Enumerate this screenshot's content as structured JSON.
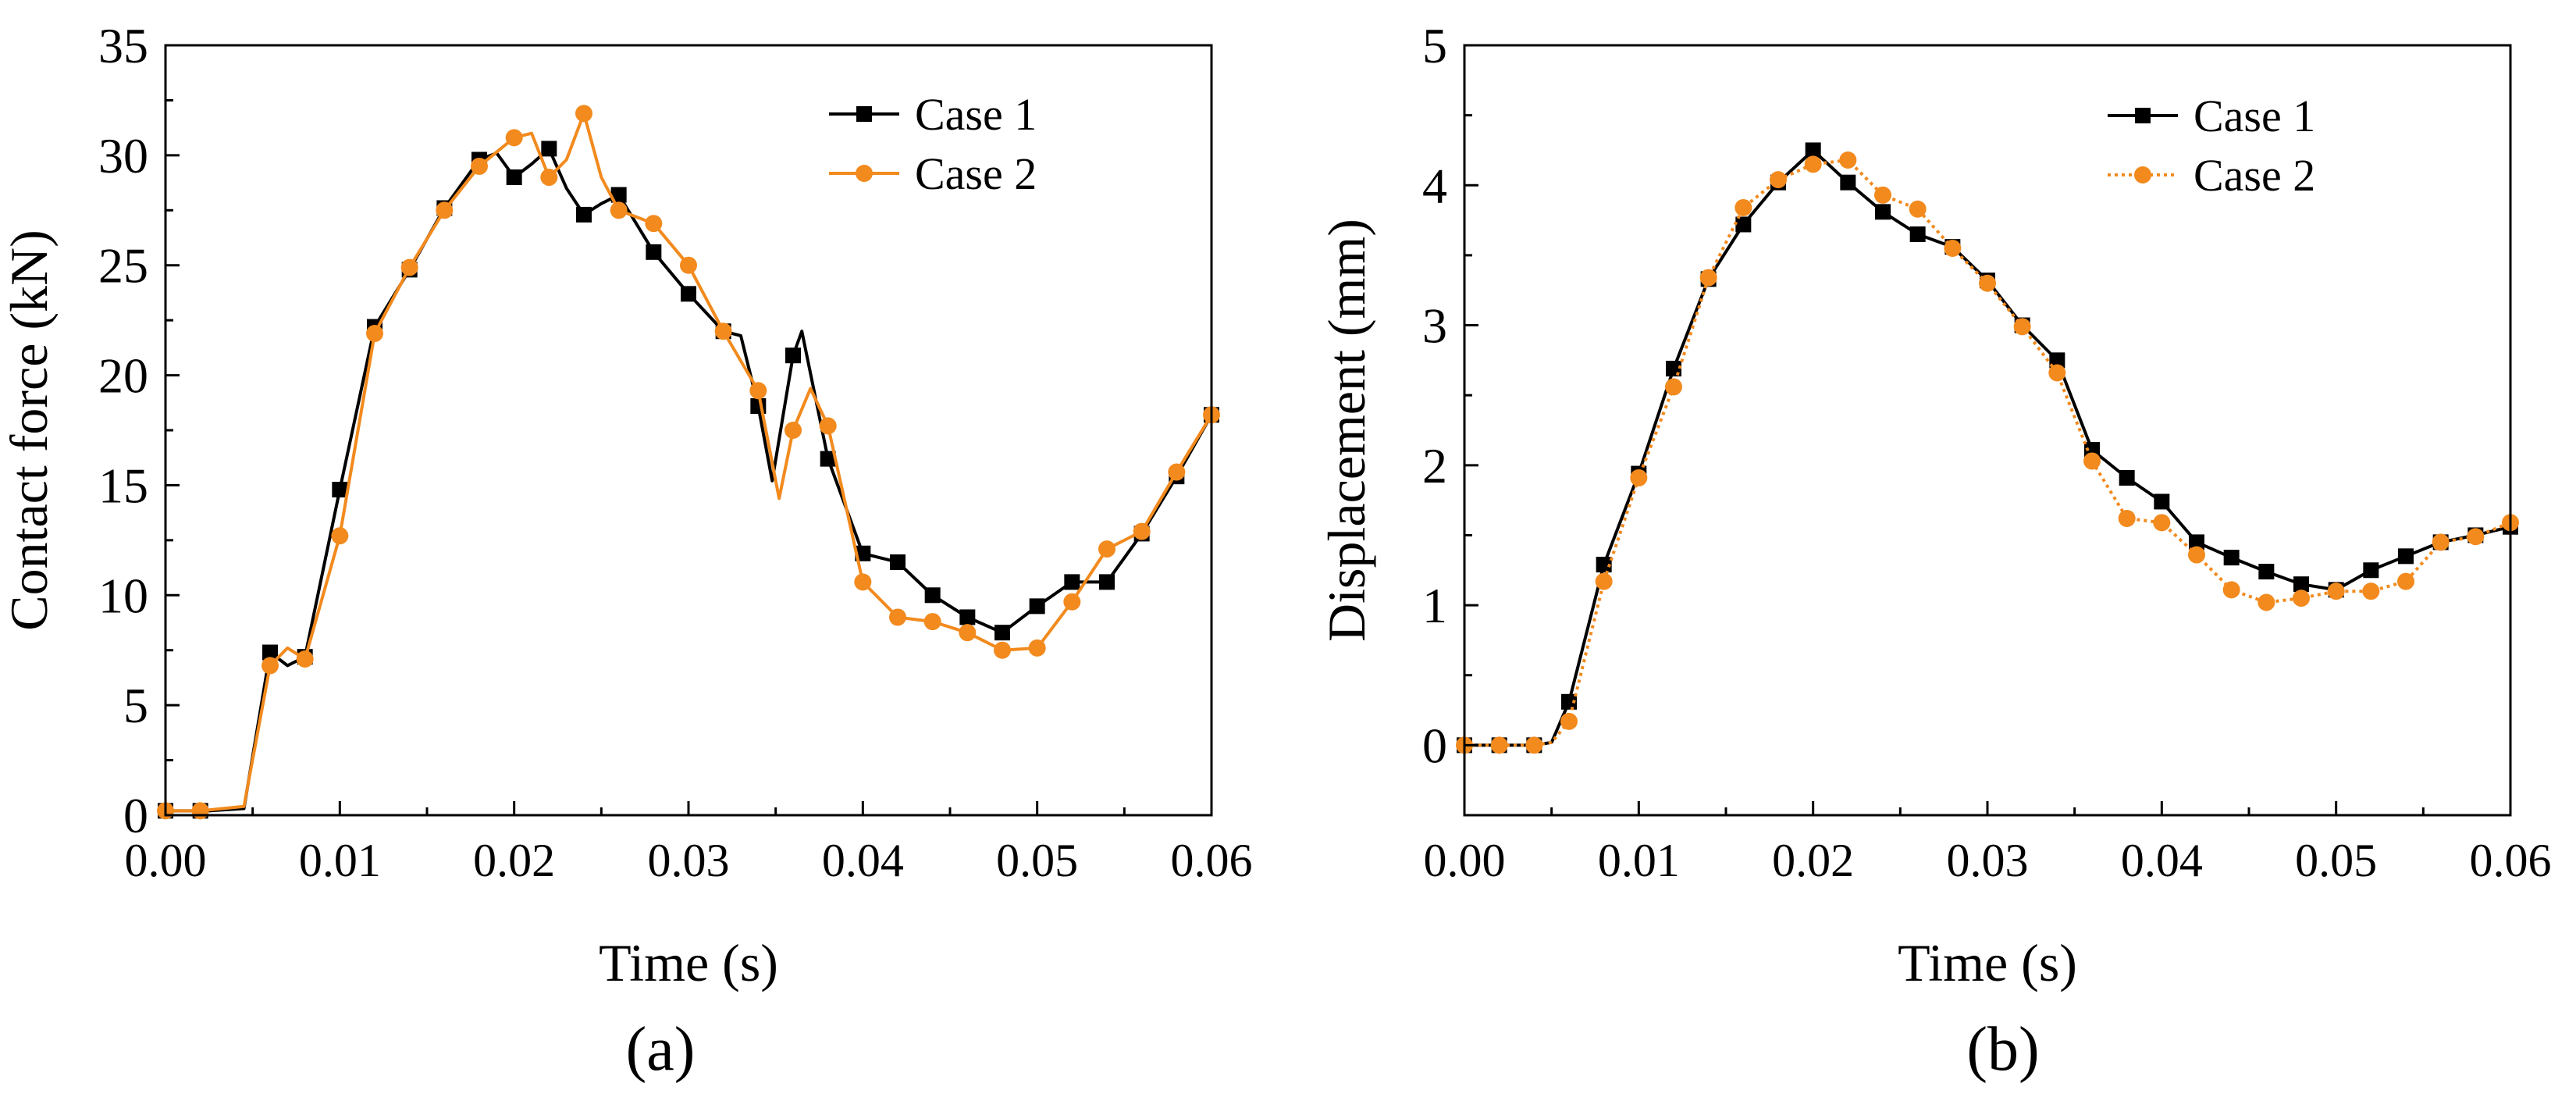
{
  "chart_data": [
    {
      "type": "line",
      "panel_label": "(a)",
      "xlabel": "Time (s)",
      "ylabel": "Contact force (kN)",
      "xlim": [
        0,
        0.06
      ],
      "ylim": [
        0,
        35
      ],
      "xticks": [
        0.0,
        0.01,
        0.02,
        0.03,
        0.04,
        0.05,
        0.06
      ],
      "xtick_labels": [
        "0.00",
        "0.01",
        "0.02",
        "0.03",
        "0.04",
        "0.05",
        "0.06"
      ],
      "yticks": [
        0,
        5,
        10,
        15,
        20,
        25,
        30,
        35
      ],
      "ytick_labels": [
        "0",
        "5",
        "10",
        "15",
        "20",
        "25",
        "30",
        "35"
      ],
      "grid": false,
      "legend_position": "top-right",
      "series": [
        {
          "name": "Case 1",
          "color": "#000000",
          "marker": "square",
          "line_style": "solid",
          "x": [
            0.0,
            0.0025,
            0.0045,
            0.006,
            0.007,
            0.008,
            0.01,
            0.012,
            0.014,
            0.016,
            0.018,
            0.019,
            0.02,
            0.021,
            0.022,
            0.023,
            0.024,
            0.025,
            0.026,
            0.028,
            0.03,
            0.032,
            0.033,
            0.034,
            0.0348,
            0.036,
            0.0365,
            0.038,
            0.04,
            0.042,
            0.044,
            0.046,
            0.048,
            0.05,
            0.052,
            0.054,
            0.056,
            0.058,
            0.06
          ],
          "y": [
            0.2,
            0.2,
            0.3,
            7.4,
            6.8,
            7.2,
            14.8,
            22.2,
            24.8,
            27.6,
            29.8,
            30.1,
            29.0,
            29.6,
            30.3,
            28.5,
            27.3,
            27.8,
            28.2,
            25.6,
            23.7,
            22.0,
            21.8,
            18.6,
            15.2,
            20.9,
            22.0,
            16.2,
            11.9,
            11.5,
            10.0,
            9.0,
            8.3,
            9.5,
            10.6,
            10.6,
            12.8,
            15.4,
            18.2
          ],
          "markers_x": [
            0.0,
            0.002,
            0.006,
            0.008,
            0.01,
            0.012,
            0.014,
            0.016,
            0.018,
            0.02,
            0.022,
            0.024,
            0.026,
            0.028,
            0.03,
            0.032,
            0.034,
            0.036,
            0.038,
            0.04,
            0.042,
            0.044,
            0.046,
            0.048,
            0.05,
            0.052,
            0.054,
            0.056,
            0.058,
            0.06
          ],
          "markers_y": [
            0.2,
            0.2,
            7.4,
            7.2,
            14.8,
            22.2,
            24.8,
            27.6,
            29.8,
            29.0,
            30.3,
            27.3,
            28.2,
            25.6,
            23.7,
            22.0,
            18.6,
            20.9,
            16.2,
            11.9,
            11.5,
            10.0,
            9.0,
            8.3,
            9.5,
            10.6,
            10.6,
            12.8,
            15.4,
            18.2
          ]
        },
        {
          "name": "Case 2",
          "color": "#F28A1E",
          "marker": "circle",
          "line_style": "solid",
          "x": [
            0.0,
            0.002,
            0.0045,
            0.006,
            0.007,
            0.008,
            0.01,
            0.012,
            0.014,
            0.016,
            0.018,
            0.02,
            0.021,
            0.022,
            0.023,
            0.024,
            0.025,
            0.026,
            0.028,
            0.03,
            0.032,
            0.034,
            0.0352,
            0.036,
            0.037,
            0.038,
            0.04,
            0.042,
            0.044,
            0.046,
            0.048,
            0.05,
            0.052,
            0.054,
            0.056,
            0.058,
            0.06
          ],
          "y": [
            0.2,
            0.2,
            0.4,
            6.8,
            7.6,
            7.1,
            12.7,
            21.9,
            24.9,
            27.5,
            29.5,
            30.8,
            31.0,
            29.0,
            29.8,
            31.9,
            29.0,
            27.5,
            26.9,
            25.0,
            22.0,
            19.3,
            14.4,
            17.5,
            19.4,
            17.7,
            10.6,
            9.0,
            8.8,
            8.3,
            7.5,
            7.6,
            9.7,
            12.1,
            12.9,
            15.6,
            18.2
          ],
          "markers_x": [
            0.0,
            0.002,
            0.006,
            0.008,
            0.01,
            0.012,
            0.014,
            0.016,
            0.018,
            0.02,
            0.022,
            0.024,
            0.026,
            0.028,
            0.03,
            0.032,
            0.034,
            0.036,
            0.038,
            0.04,
            0.042,
            0.044,
            0.046,
            0.048,
            0.05,
            0.052,
            0.054,
            0.056,
            0.058,
            0.06
          ],
          "markers_y": [
            0.2,
            0.2,
            6.8,
            7.1,
            12.7,
            21.9,
            24.9,
            27.5,
            29.5,
            30.8,
            29.0,
            31.9,
            27.5,
            26.9,
            25.0,
            22.0,
            19.3,
            17.5,
            17.7,
            10.6,
            9.0,
            8.8,
            8.3,
            7.5,
            7.6,
            9.7,
            12.1,
            12.9,
            15.6,
            18.2
          ]
        }
      ]
    },
    {
      "type": "line",
      "panel_label": "(b)",
      "xlabel": "Time (s)",
      "ylabel": "Displacement (mm)",
      "xlim": [
        0,
        0.06
      ],
      "ylim": [
        -0.5,
        5
      ],
      "xticks": [
        0.0,
        0.01,
        0.02,
        0.03,
        0.04,
        0.05,
        0.06
      ],
      "xtick_labels": [
        "0.00",
        "0.01",
        "0.02",
        "0.03",
        "0.04",
        "0.05",
        "0.06"
      ],
      "yticks": [
        0,
        1,
        2,
        3,
        4,
        5
      ],
      "ytick_labels": [
        "0",
        "1",
        "2",
        "3",
        "4",
        "5"
      ],
      "grid": false,
      "legend_position": "top-right",
      "series": [
        {
          "name": "Case 1",
          "color": "#000000",
          "marker": "square",
          "line_style": "solid",
          "x": [
            0.0,
            0.002,
            0.004,
            0.005,
            0.006,
            0.008,
            0.01,
            0.012,
            0.014,
            0.016,
            0.018,
            0.02,
            0.022,
            0.024,
            0.026,
            0.028,
            0.03,
            0.032,
            0.034,
            0.036,
            0.038,
            0.04,
            0.042,
            0.044,
            0.046,
            0.048,
            0.05,
            0.052,
            0.054,
            0.056,
            0.058,
            0.06
          ],
          "y": [
            0.0,
            0.0,
            0.0,
            0.02,
            0.31,
            1.29,
            1.94,
            2.69,
            3.33,
            3.72,
            4.02,
            4.25,
            4.02,
            3.81,
            3.65,
            3.56,
            3.32,
            3.0,
            2.75,
            2.11,
            1.91,
            1.74,
            1.45,
            1.34,
            1.24,
            1.15,
            1.11,
            1.25,
            1.35,
            1.45,
            1.5,
            1.56
          ],
          "markers_x": [
            0.0,
            0.002,
            0.004,
            0.006,
            0.008,
            0.01,
            0.012,
            0.014,
            0.016,
            0.018,
            0.02,
            0.022,
            0.024,
            0.026,
            0.028,
            0.03,
            0.032,
            0.034,
            0.036,
            0.038,
            0.04,
            0.042,
            0.044,
            0.046,
            0.048,
            0.05,
            0.052,
            0.054,
            0.056,
            0.058,
            0.06
          ],
          "markers_y": [
            0.0,
            0.0,
            0.0,
            0.31,
            1.29,
            1.94,
            2.69,
            3.33,
            3.72,
            4.02,
            4.25,
            4.02,
            3.81,
            3.65,
            3.56,
            3.32,
            3.0,
            2.75,
            2.11,
            1.91,
            1.74,
            1.45,
            1.34,
            1.24,
            1.15,
            1.11,
            1.25,
            1.35,
            1.45,
            1.5,
            1.56
          ]
        },
        {
          "name": "Case 2",
          "color": "#F28A1E",
          "marker": "circle",
          "line_style": "dotted",
          "x": [
            0.0,
            0.002,
            0.004,
            0.005,
            0.006,
            0.008,
            0.01,
            0.012,
            0.014,
            0.016,
            0.018,
            0.02,
            0.022,
            0.024,
            0.026,
            0.028,
            0.03,
            0.032,
            0.034,
            0.036,
            0.038,
            0.04,
            0.042,
            0.044,
            0.046,
            0.048,
            0.05,
            0.052,
            0.054,
            0.056,
            0.058,
            0.06
          ],
          "y": [
            0.0,
            0.0,
            0.0,
            0.02,
            0.17,
            1.17,
            1.91,
            2.56,
            3.34,
            3.84,
            4.04,
            4.15,
            4.18,
            3.93,
            3.83,
            3.55,
            3.3,
            2.99,
            2.66,
            2.03,
            1.62,
            1.59,
            1.36,
            1.11,
            1.02,
            1.05,
            1.1,
            1.1,
            1.17,
            1.45,
            1.49,
            1.59
          ],
          "markers_x": [
            0.0,
            0.002,
            0.004,
            0.006,
            0.008,
            0.01,
            0.012,
            0.014,
            0.016,
            0.018,
            0.02,
            0.022,
            0.024,
            0.026,
            0.028,
            0.03,
            0.032,
            0.034,
            0.036,
            0.038,
            0.04,
            0.042,
            0.044,
            0.046,
            0.048,
            0.05,
            0.052,
            0.054,
            0.056,
            0.058,
            0.06
          ],
          "markers_y": [
            0.0,
            0.0,
            0.0,
            0.17,
            1.17,
            1.91,
            2.56,
            3.34,
            3.84,
            4.04,
            4.15,
            4.18,
            3.93,
            3.83,
            3.55,
            3.3,
            2.99,
            2.66,
            2.03,
            1.62,
            1.59,
            1.36,
            1.11,
            1.02,
            1.05,
            1.1,
            1.1,
            1.17,
            1.45,
            1.49,
            1.59
          ]
        }
      ]
    }
  ]
}
